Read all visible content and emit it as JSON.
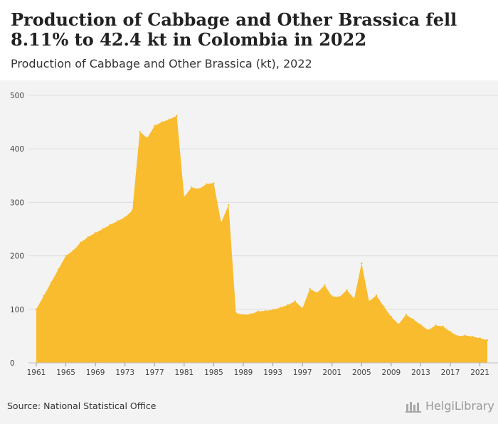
{
  "header": {
    "title": "Production of Cabbage and Other Brassica fell 8.11% to 42.4 kt in Colombia in 2022",
    "subtitle": "Production of Cabbage and Other Brassica (kt), 2022"
  },
  "footer": {
    "source": "Source: National Statistical Office",
    "brand": "HelgiLibrary"
  },
  "colors": {
    "area": "#f9bc2e",
    "grid": "#dcdcdc",
    "background": "#f3f3f3"
  },
  "chart_data": {
    "type": "area",
    "title": "Production of Cabbage and Other Brassica fell 8.11% to 42.4 kt in Colombia in 2022",
    "subtitle": "Production of Cabbage and Other Brassica (kt), 2022",
    "ylim": [
      0,
      500
    ],
    "yticks": [
      0,
      100,
      200,
      300,
      400,
      500
    ],
    "xticks": [
      1961,
      1965,
      1969,
      1973,
      1977,
      1981,
      1985,
      1989,
      1993,
      1997,
      2001,
      2005,
      2009,
      2013,
      2017,
      2021
    ],
    "grid": true,
    "series": [
      {
        "x": [
          1961,
          1962,
          1963,
          1964,
          1965,
          1966,
          1967,
          1968,
          1969,
          1970,
          1971,
          1972,
          1973,
          1974,
          1975,
          1976,
          1977,
          1978,
          1979,
          1980,
          1981,
          1982,
          1983,
          1984,
          1985,
          1986,
          1987,
          1988,
          1989,
          1990,
          1991,
          1992,
          1993,
          1994,
          1995,
          1996,
          1997,
          1998,
          1999,
          2000,
          2001,
          2002,
          2003,
          2004,
          2005,
          2006,
          2007,
          2008,
          2009,
          2010,
          2011,
          2012,
          2013,
          2014,
          2015,
          2016,
          2017,
          2018,
          2019,
          2020,
          2021,
          2022
        ],
        "values": [
          100,
          125,
          150,
          175,
          200,
          210,
          225,
          235,
          243,
          250,
          258,
          265,
          272,
          285,
          432,
          420,
          443,
          450,
          455,
          462,
          310,
          328,
          325,
          334,
          336,
          262,
          295,
          93,
          90,
          91,
          96,
          97,
          99,
          103,
          108,
          115,
          102,
          138,
          131,
          145,
          124,
          123,
          136,
          120,
          186,
          115,
          126,
          105,
          86,
          72,
          90,
          81,
          71,
          61,
          70,
          68,
          58,
          50,
          51,
          49,
          46,
          42.4
        ]
      }
    ]
  }
}
